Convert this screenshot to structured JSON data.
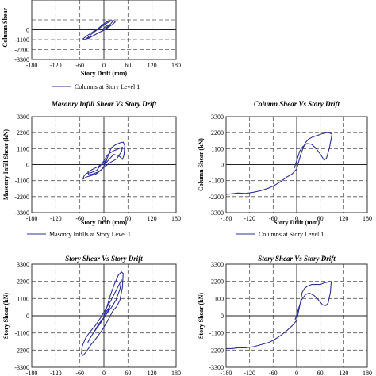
{
  "chart_data": [
    {
      "id": "c1",
      "type": "line",
      "title": "",
      "xlabel": "Story Drift (mm)",
      "ylabel": "Column Shear",
      "xlim": [
        -180,
        180
      ],
      "ylim": [
        -3300,
        3300
      ],
      "xticks": [
        "-180",
        "-120",
        "-60",
        "0",
        "60",
        "120",
        "180"
      ],
      "yticks": [
        "0",
        "-1100",
        "-2200",
        "-3300"
      ],
      "grid": "dashed at major ticks",
      "legend_position": "bottom",
      "series": [
        {
          "name": "Columns at Story Level 1",
          "color": "#2e3192",
          "x": [
            0,
            8,
            18,
            22,
            15,
            6,
            -4,
            -14,
            -28,
            -42,
            -52,
            -48,
            -38,
            -24,
            -12,
            0,
            10,
            20,
            28,
            24,
            16,
            6,
            -6,
            -18,
            -30,
            -40,
            -46,
            -38,
            -26,
            -14,
            -2,
            8,
            14,
            10,
            4,
            -2,
            0
          ],
          "y": [
            0,
            300,
            700,
            950,
            1000,
            850,
            550,
            150,
            -250,
            -650,
            -1000,
            -1100,
            -900,
            -600,
            -300,
            -50,
            250,
            550,
            850,
            1050,
            950,
            700,
            350,
            -50,
            -450,
            -850,
            -1050,
            -950,
            -650,
            -350,
            -50,
            200,
            450,
            500,
            350,
            100,
            0
          ]
        }
      ]
    },
    {
      "id": "c2",
      "type": "line",
      "title": "Masonry Infill  Shear Vs Story Drift",
      "xlabel": "Story Drift (mm)",
      "ylabel": "Masonry Infill Shear (kN)",
      "xlim": [
        -180,
        180
      ],
      "ylim": [
        -3300,
        3300
      ],
      "xticks": [
        "-180",
        "-120",
        "-60",
        "0",
        "60",
        "120",
        "180"
      ],
      "yticks": [
        "3300",
        "2200",
        "1100",
        "0",
        "-1100",
        "-2200",
        "-3300"
      ],
      "grid": "dashed at major ticks",
      "legend_position": "bottom",
      "series": [
        {
          "name": "Masonry Infills at Story Level 1",
          "color": "#2e3192",
          "x": [
            0,
            6,
            12,
            18,
            28,
            40,
            48,
            52,
            50,
            46,
            38,
            24,
            8,
            -6,
            -20,
            -32,
            -44,
            -52,
            -50,
            -44,
            -32,
            -18,
            -4,
            10,
            24,
            38,
            46,
            44,
            32,
            16,
            0,
            -14,
            -28,
            -38,
            -40,
            -30,
            -16,
            -2,
            8,
            6,
            0
          ],
          "y": [
            0,
            300,
            700,
            1150,
            1350,
            1500,
            1550,
            1300,
            650,
            350,
            600,
            700,
            200,
            -350,
            -650,
            -750,
            -850,
            -1000,
            -800,
            -600,
            -550,
            -400,
            100,
            700,
            950,
            1100,
            1200,
            900,
            400,
            150,
            -200,
            -500,
            -650,
            -700,
            -500,
            -350,
            -150,
            100,
            400,
            250,
            0
          ]
        }
      ]
    },
    {
      "id": "c3",
      "type": "line",
      "title": "Column Shear Vs Story Drift",
      "xlabel": "Story Drift (mm)",
      "ylabel": "Column Shear (kN)",
      "xlim": [
        -180,
        180
      ],
      "ylim": [
        -3300,
        3300
      ],
      "xticks": [
        "-180",
        "-120",
        "-60",
        "0",
        "60",
        "120",
        "180"
      ],
      "yticks": [
        "3300",
        "2200",
        "1100",
        "0",
        "-1100",
        "-2200",
        "-3300"
      ],
      "grid": "dashed at major ticks",
      "legend_position": "bottom",
      "series": [
        {
          "name": "Columns at Story Level 1",
          "color": "#2e3192",
          "x": [
            -180,
            -165,
            -150,
            -130,
            -110,
            -90,
            -70,
            -55,
            -40,
            -25,
            -12,
            0,
            5,
            10,
            15,
            22,
            30,
            40,
            52,
            62,
            70,
            76,
            82,
            86,
            90,
            84,
            76,
            70,
            62,
            50,
            38,
            26,
            16,
            8,
            2,
            -6
          ],
          "y": [
            -2050,
            -2000,
            -1950,
            -1980,
            -1900,
            -1780,
            -1600,
            -1400,
            -1150,
            -850,
            -650,
            -300,
            200,
            650,
            1050,
            1500,
            1750,
            1900,
            2000,
            2100,
            2150,
            2200,
            2200,
            2150,
            2100,
            1200,
            450,
            300,
            650,
            1100,
            1400,
            1450,
            1250,
            950,
            450,
            -250
          ]
        }
      ]
    },
    {
      "id": "c4",
      "type": "line",
      "title": "Story  Shear Vs Story Drift",
      "xlabel": "Story Drift (mm)",
      "ylabel": "Story Shear (kN)",
      "xlim": [
        -180,
        180
      ],
      "ylim": [
        -3300,
        3300
      ],
      "xticks": [
        "-180",
        "-120",
        "-60",
        "0",
        "60",
        "120",
        "180"
      ],
      "yticks": [
        "3300",
        "2200",
        "1100",
        "0",
        "-1100",
        "-2200",
        "-3300"
      ],
      "grid": "dashed at major ticks",
      "legend_position": "none",
      "series": [
        {
          "name": "",
          "color": "#2e3192",
          "x": [
            0,
            8,
            16,
            26,
            36,
            44,
            48,
            46,
            40,
            32,
            22,
            10,
            -4,
            -18,
            -32,
            -44,
            -52,
            -56,
            -54,
            -46,
            -34,
            -22,
            -10,
            4,
            18,
            30,
            40,
            44,
            40,
            30,
            18,
            6,
            -8,
            -22,
            -34,
            -40,
            -36,
            -24,
            -12,
            0,
            10,
            16,
            12,
            4,
            0
          ],
          "y": [
            0,
            600,
            1300,
            2000,
            2600,
            2800,
            2700,
            1800,
            1000,
            600,
            300,
            -300,
            -900,
            -1400,
            -1850,
            -2300,
            -2550,
            -2400,
            -1950,
            -1450,
            -1000,
            -650,
            -200,
            400,
            1000,
            1600,
            2100,
            2300,
            1700,
            1000,
            500,
            100,
            -450,
            -950,
            -1400,
            -1700,
            -1500,
            -1000,
            -500,
            -100,
            300,
            650,
            500,
            200,
            0
          ]
        }
      ]
    },
    {
      "id": "c5",
      "type": "line",
      "title": "Story Shear Vs Story Drift",
      "xlabel": "",
      "ylabel": "Story Shear (kN)",
      "xlim": [
        -180,
        180
      ],
      "ylim": [
        -3300,
        3300
      ],
      "xticks": [
        "-180",
        "-120",
        "-60",
        "0",
        "60",
        "120",
        "180"
      ],
      "yticks": [
        "3300",
        "2200",
        "1100",
        "0",
        "-1100",
        "-2200",
        "-3300"
      ],
      "grid": "dashed at major ticks",
      "legend_position": "none",
      "series": [
        {
          "name": "",
          "color": "#2e3192",
          "x": [
            -180,
            -165,
            -150,
            -130,
            -110,
            -90,
            -70,
            -55,
            -40,
            -25,
            -12,
            0,
            5,
            10,
            14,
            20,
            28,
            38,
            50,
            60,
            70,
            78,
            84,
            88,
            86,
            80,
            74,
            66,
            56,
            44,
            32,
            22,
            12,
            4,
            -4
          ],
          "y": [
            -2100,
            -2100,
            -2050,
            -2050,
            -1980,
            -1850,
            -1700,
            -1500,
            -1250,
            -950,
            -650,
            -300,
            300,
            900,
            1500,
            1750,
            1900,
            2000,
            2000,
            2000,
            2100,
            2150,
            2200,
            2150,
            1500,
            800,
            650,
            700,
            1000,
            1300,
            1450,
            1350,
            1000,
            400,
            -250
          ]
        }
      ]
    }
  ]
}
